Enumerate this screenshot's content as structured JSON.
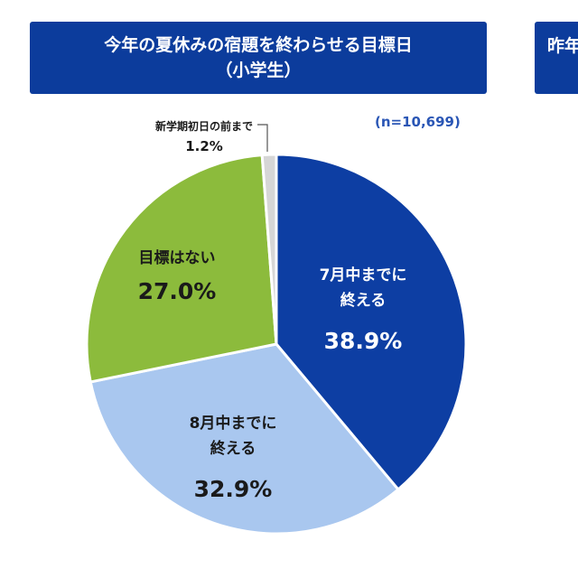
{
  "title": {
    "line1": "今年の夏休みの宿題を終わらせる目標日",
    "line2": "（小学生）"
  },
  "second_panel_title": "昨年",
  "note": "(n=10,699)",
  "chart_data": {
    "type": "pie",
    "title": "今年の夏休みの宿題を終わらせる目標日（小学生）",
    "slices": [
      {
        "label": [
          "7月中までに",
          "終える"
        ],
        "value": 38.9,
        "value_label": "38.9%",
        "color": "#0d3ea3",
        "text_color": "#ffffff"
      },
      {
        "label": [
          "8月中までに",
          "終える"
        ],
        "value": 32.9,
        "value_label": "32.9%",
        "color": "#a9c7ef",
        "text_color": "#1a1a1a"
      },
      {
        "label": [
          "目標はない"
        ],
        "value": 27.0,
        "value_label": "27.0%",
        "color": "#8cbb3c",
        "text_color": "#1a1a1a"
      },
      {
        "label": [
          "新学期初日の前まで"
        ],
        "value": 1.2,
        "value_label": "1.2%",
        "color": "#d6d6d6",
        "text_color": "#1a1a1a"
      }
    ]
  }
}
